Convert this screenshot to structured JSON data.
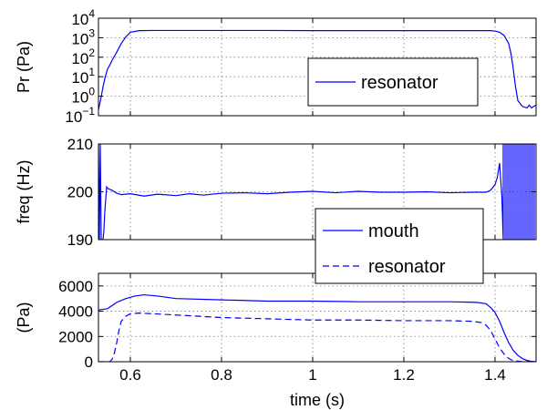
{
  "chart_data": [
    {
      "type": "line",
      "ylabel": "Pr (Pa)",
      "yscale": "log",
      "xlim": [
        0.53,
        1.49
      ],
      "ylim": [
        0.1,
        10000
      ],
      "xticks": [
        0.6,
        0.8,
        1,
        1.2,
        1.4
      ],
      "xtick_labels": [
        "",
        "",
        "",
        "",
        ""
      ],
      "yticks": [
        0.1,
        1,
        10,
        100,
        1000,
        10000
      ],
      "ytick_labels": [
        {
          "base": "10",
          "exp": "−1"
        },
        {
          "base": "10",
          "exp": "0"
        },
        {
          "base": "10",
          "exp": "1"
        },
        {
          "base": "10",
          "exp": "2"
        },
        {
          "base": "10",
          "exp": "3"
        },
        {
          "base": "10",
          "exp": "4"
        }
      ],
      "grid": true,
      "legend_position": "center-right",
      "series": [
        {
          "name": "resonator",
          "color": "#0000ff",
          "dash": "solid",
          "x": [
            0.53,
            0.535,
            0.54,
            0.545,
            0.55,
            0.555,
            0.56,
            0.57,
            0.58,
            0.59,
            0.6,
            0.62,
            0.65,
            0.7,
            0.8,
            0.9,
            1.0,
            1.1,
            1.2,
            1.3,
            1.38,
            1.39,
            1.4,
            1.41,
            1.42,
            1.43,
            1.435,
            1.44,
            1.445,
            1.45,
            1.46,
            1.47,
            1.475,
            1.48,
            1.485,
            1.49
          ],
          "y": [
            0.2,
            0.7,
            3,
            10,
            25,
            40,
            70,
            180,
            500,
            1100,
            1900,
            2300,
            2350,
            2350,
            2350,
            2350,
            2300,
            2300,
            2300,
            2300,
            2300,
            2300,
            2200,
            1900,
            1300,
            500,
            150,
            25,
            3,
            0.6,
            0.3,
            0.25,
            0.35,
            0.25,
            0.3,
            0.35
          ]
        }
      ]
    },
    {
      "type": "line",
      "ylabel": "freq (Hz)",
      "xlim": [
        0.53,
        1.49
      ],
      "ylim": [
        190,
        210
      ],
      "xticks": [
        0.6,
        0.8,
        1,
        1.2,
        1.4
      ],
      "xtick_labels": [
        "",
        "",
        "",
        "",
        ""
      ],
      "yticks": [
        190,
        200,
        210
      ],
      "ytick_labels": [
        "190",
        "200",
        "210"
      ],
      "grid": true,
      "legend_position": "bottom-right",
      "series": [
        {
          "name": "mouth",
          "color": "#0000ff",
          "dash": "solid",
          "x": [
            0.53,
            0.532,
            0.534,
            0.536,
            0.538,
            0.54,
            0.542,
            0.544,
            0.548,
            0.55,
            0.56,
            0.57,
            0.58,
            0.6,
            0.63,
            0.66,
            0.7,
            0.73,
            0.76,
            0.8,
            0.85,
            0.9,
            0.95,
            1.0,
            1.05,
            1.1,
            1.15,
            1.2,
            1.25,
            1.3,
            1.35,
            1.38,
            1.39,
            1.4,
            1.405,
            1.41,
            1.415,
            1.418,
            1.418,
            1.422,
            1.422,
            1.426,
            1.426,
            1.43,
            1.43,
            1.434,
            1.434,
            1.438,
            1.438,
            1.442,
            1.442,
            1.446,
            1.446,
            1.45,
            1.45,
            1.454,
            1.454,
            1.458,
            1.458,
            1.462,
            1.462,
            1.466,
            1.466,
            1.47,
            1.47,
            1.474,
            1.474,
            1.478,
            1.478,
            1.482,
            1.482,
            1.486,
            1.486,
            1.49
          ],
          "y": [
            210,
            190,
            210,
            190,
            190,
            190,
            192,
            196,
            201,
            200.7,
            200.3,
            199.7,
            199.4,
            199.6,
            199.1,
            199.5,
            199.2,
            199.6,
            199.3,
            199.7,
            199.8,
            199.6,
            199.9,
            200.1,
            199.8,
            200.1,
            199.9,
            199.9,
            200.0,
            199.8,
            199.9,
            199.9,
            200.3,
            201.5,
            203,
            206,
            199,
            190,
            210,
            210,
            190,
            190,
            210,
            210,
            190,
            190,
            210,
            210,
            190,
            190,
            210,
            210,
            190,
            190,
            210,
            210,
            190,
            190,
            210,
            210,
            190,
            190,
            210,
            210,
            190,
            190,
            210,
            210,
            190,
            190,
            210,
            210,
            190,
            190
          ]
        }
      ]
    },
    {
      "type": "line",
      "ylabel": "(Pa)",
      "xlabel": "time (s)",
      "xlim": [
        0.53,
        1.49
      ],
      "ylim": [
        0,
        7000
      ],
      "xticks": [
        0.6,
        0.8,
        1,
        1.2,
        1.4
      ],
      "xtick_labels": [
        "0.6",
        "0.8",
        "1",
        "1.2",
        "1.4"
      ],
      "yticks": [
        0,
        2000,
        4000,
        6000
      ],
      "ytick_labels": [
        "0",
        "2000",
        "4000",
        "6000"
      ],
      "grid": true,
      "legend_position": "top-right (shared box with mouth)",
      "series": [
        {
          "name": "mouth",
          "color": "#0000ff",
          "dash": "solid",
          "x": [
            0.53,
            0.55,
            0.57,
            0.59,
            0.61,
            0.63,
            0.66,
            0.7,
            0.8,
            0.9,
            1.0,
            1.1,
            1.2,
            1.3,
            1.36,
            1.38,
            1.39,
            1.4,
            1.41,
            1.42,
            1.43,
            1.44,
            1.45,
            1.46,
            1.47,
            1.48,
            1.49
          ],
          "y": [
            4100,
            4200,
            4700,
            5000,
            5200,
            5300,
            5200,
            5000,
            4900,
            4800,
            4800,
            4750,
            4750,
            4750,
            4700,
            4600,
            4300,
            3900,
            3200,
            2300,
            1500,
            900,
            500,
            250,
            100,
            30,
            0
          ]
        },
        {
          "name": "resonator",
          "color": "#0000ff",
          "dash": "dashed",
          "x": [
            0.53,
            0.555,
            0.56,
            0.565,
            0.57,
            0.575,
            0.58,
            0.59,
            0.6,
            0.62,
            0.65,
            0.7,
            0.8,
            0.9,
            1.0,
            1.1,
            1.2,
            1.3,
            1.35,
            1.37,
            1.38,
            1.39,
            1.4,
            1.41,
            1.42,
            1.43,
            1.44,
            1.46,
            1.48,
            1.49
          ],
          "y": [
            0,
            0,
            200,
            700,
            1500,
            2500,
            3200,
            3600,
            3800,
            3850,
            3800,
            3700,
            3500,
            3400,
            3300,
            3300,
            3250,
            3250,
            3200,
            3100,
            2900,
            2500,
            1800,
            1100,
            600,
            250,
            80,
            0,
            0,
            0
          ]
        }
      ]
    }
  ]
}
